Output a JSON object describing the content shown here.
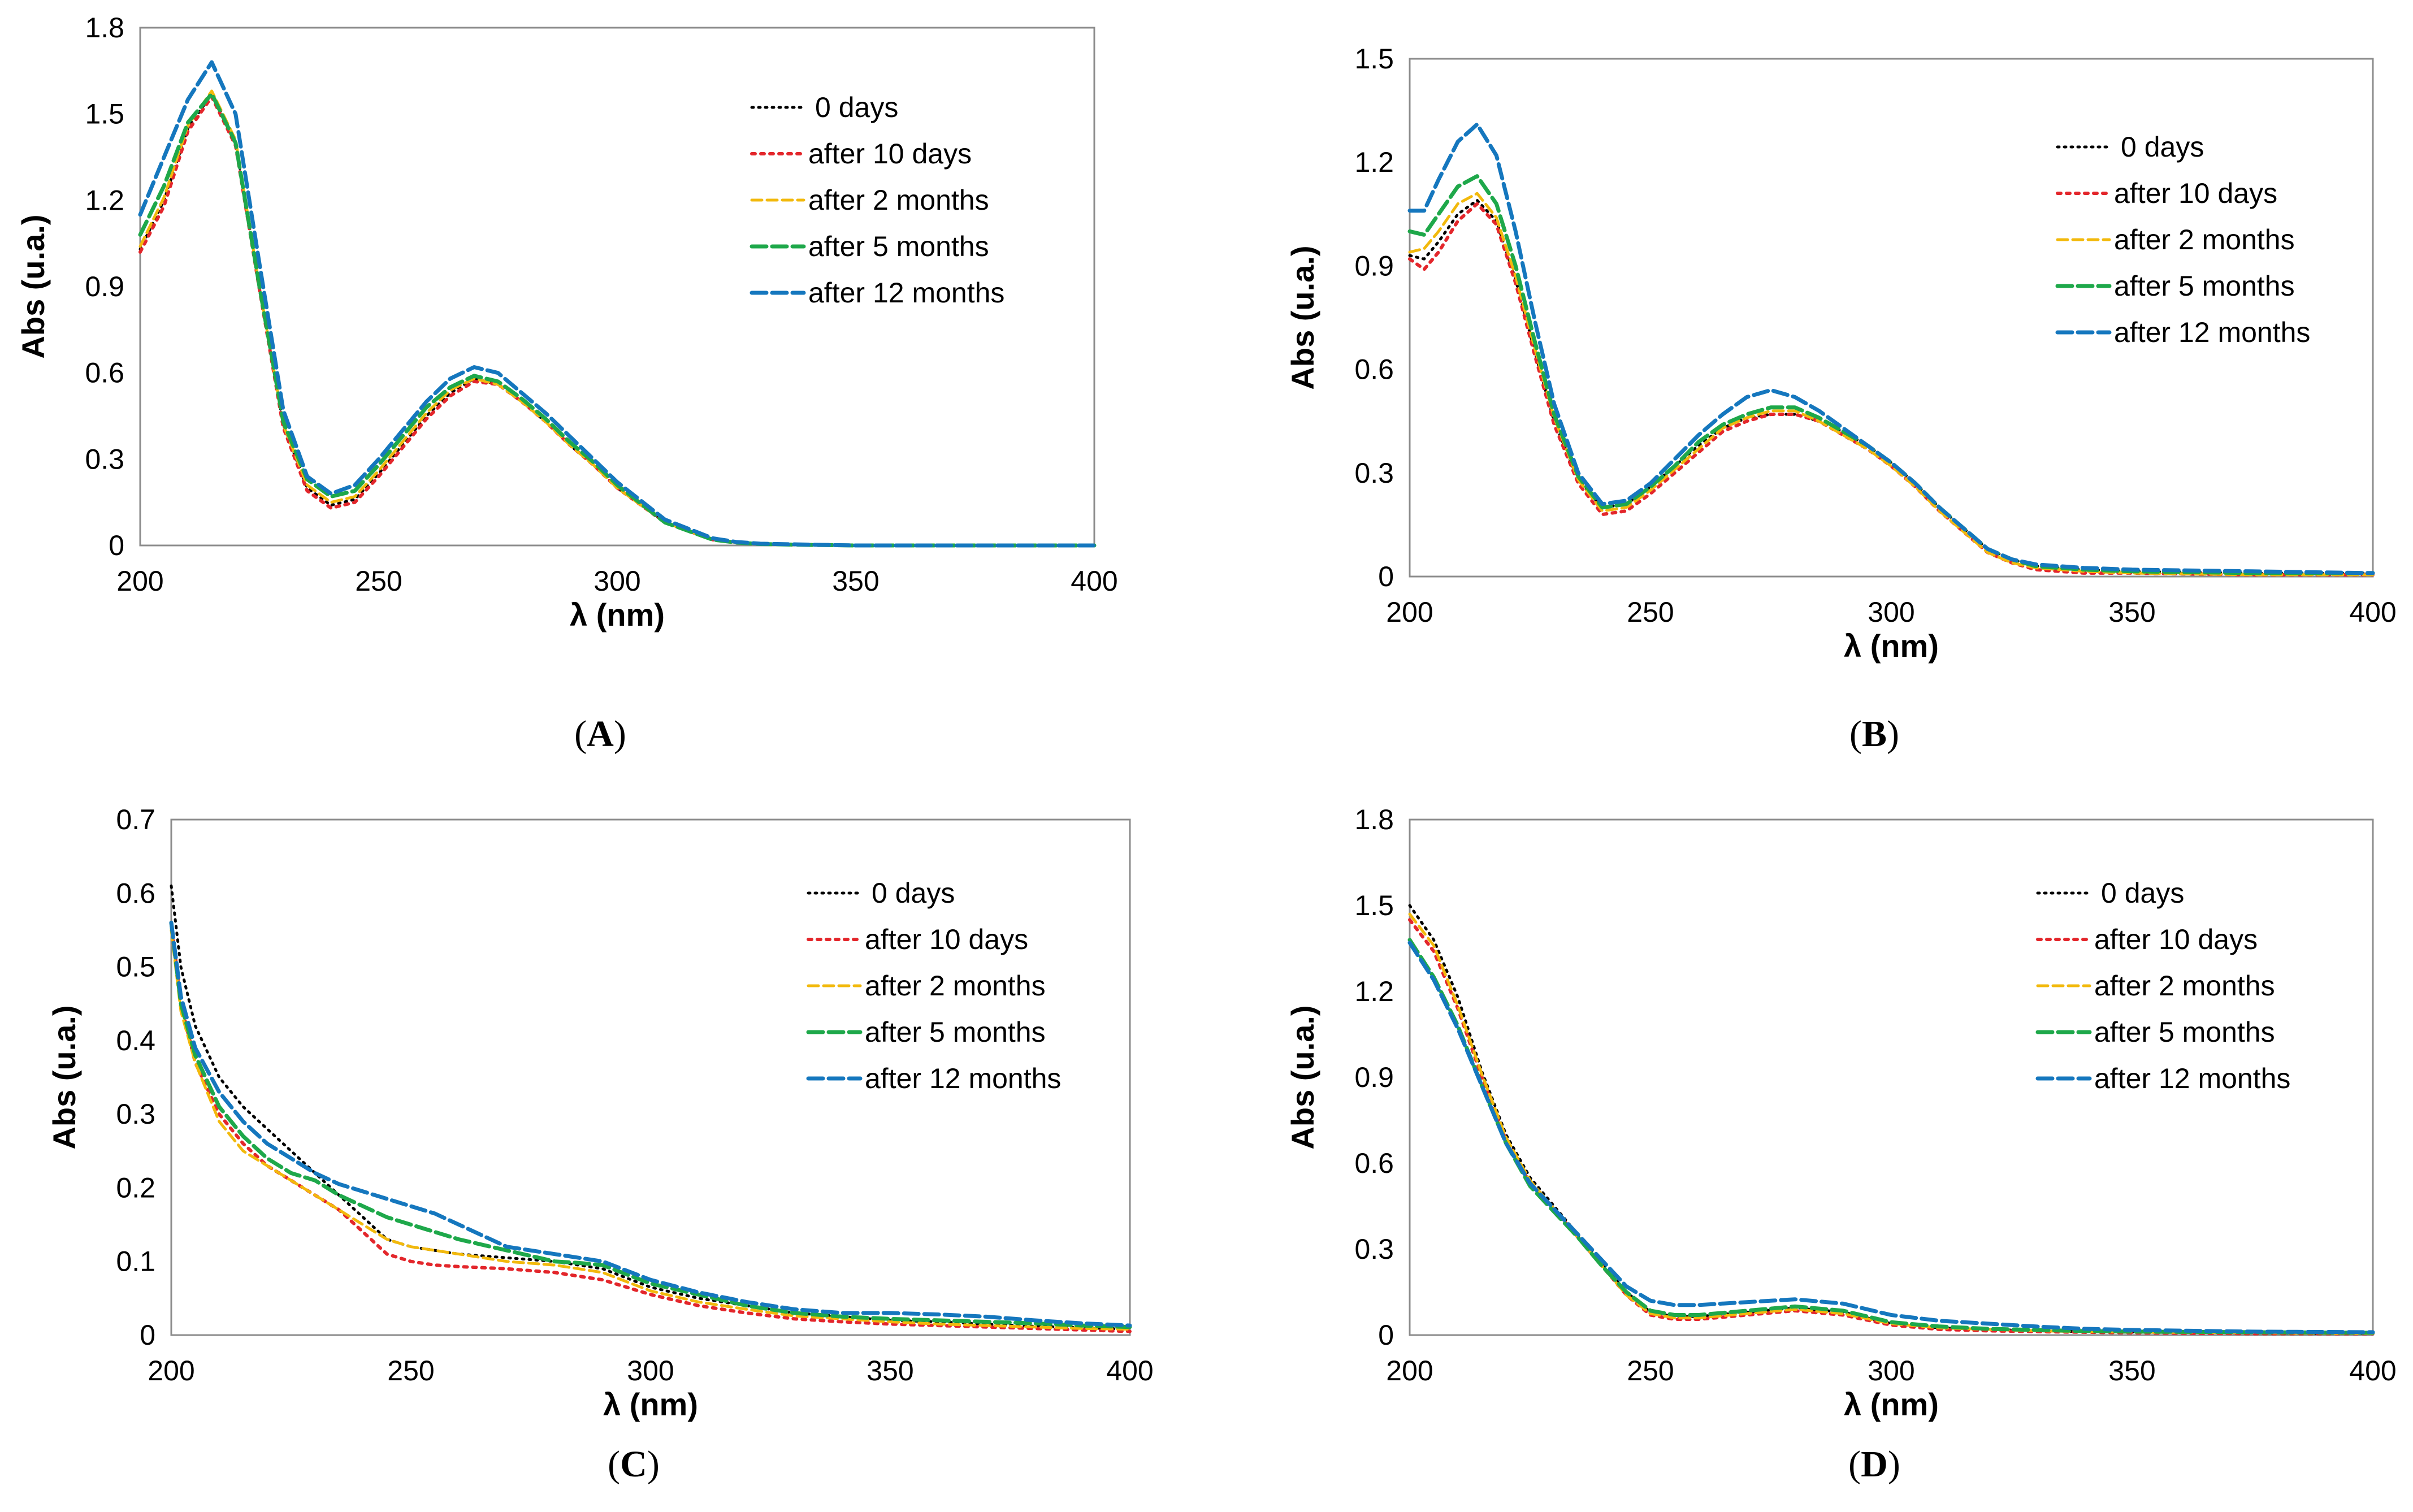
{
  "legend": [
    "0 days",
    "after 10 days",
    "after 2 months",
    "after 5 months",
    "after 12 months"
  ],
  "series_colors": [
    "#000000",
    "#e3262b",
    "#f2b90c",
    "#1ea84a",
    "#1577be"
  ],
  "chart_data": [
    {
      "panel_label": "A",
      "type": "line",
      "xlabel": "λ (nm)",
      "ylabel": "Abs (u.a.)",
      "xlim": [
        200,
        400
      ],
      "ylim": [
        0,
        1.8
      ],
      "xticks": [
        200,
        250,
        300,
        350,
        400
      ],
      "yticks": [
        0,
        0.3,
        0.6,
        0.9,
        1.2,
        1.5,
        1.8
      ],
      "ytick_labels": [
        "0",
        "0.3",
        "0.6",
        "0.9",
        "1.2",
        "1.5",
        "1.8"
      ],
      "legend_position": "top-right",
      "grid": false,
      "x": [
        200,
        205,
        210,
        215,
        220,
        225,
        230,
        235,
        240,
        245,
        250,
        255,
        260,
        265,
        270,
        275,
        280,
        285,
        290,
        295,
        300,
        310,
        320,
        325,
        330,
        340,
        350,
        375,
        400
      ],
      "series": [
        {
          "name": "0 days",
          "values": [
            1.03,
            1.2,
            1.45,
            1.57,
            1.4,
            0.9,
            0.42,
            0.2,
            0.14,
            0.16,
            0.25,
            0.35,
            0.45,
            0.53,
            0.58,
            0.56,
            0.5,
            0.43,
            0.35,
            0.28,
            0.2,
            0.08,
            0.02,
            0.01,
            0.005,
            0.002,
            0.0,
            0.0,
            0.0
          ]
        },
        {
          "name": "after 10 days",
          "values": [
            1.02,
            1.18,
            1.44,
            1.56,
            1.39,
            0.89,
            0.41,
            0.19,
            0.13,
            0.15,
            0.24,
            0.34,
            0.44,
            0.52,
            0.57,
            0.56,
            0.5,
            0.43,
            0.35,
            0.28,
            0.2,
            0.08,
            0.02,
            0.01,
            0.005,
            0.002,
            0.0,
            0.0,
            0.0
          ]
        },
        {
          "name": "after 2 months",
          "values": [
            1.04,
            1.21,
            1.46,
            1.58,
            1.41,
            0.9,
            0.42,
            0.21,
            0.15,
            0.17,
            0.26,
            0.36,
            0.46,
            0.54,
            0.58,
            0.56,
            0.5,
            0.43,
            0.35,
            0.28,
            0.2,
            0.08,
            0.02,
            0.01,
            0.005,
            0.002,
            0.0,
            0.0,
            0.0
          ]
        },
        {
          "name": "after 5 months",
          "values": [
            1.08,
            1.25,
            1.47,
            1.57,
            1.4,
            0.9,
            0.43,
            0.23,
            0.17,
            0.19,
            0.28,
            0.38,
            0.48,
            0.55,
            0.59,
            0.57,
            0.51,
            0.44,
            0.36,
            0.29,
            0.21,
            0.08,
            0.02,
            0.01,
            0.005,
            0.002,
            0.0,
            0.0,
            0.0
          ]
        },
        {
          "name": "after 12 months",
          "values": [
            1.15,
            1.35,
            1.55,
            1.68,
            1.5,
            0.98,
            0.47,
            0.24,
            0.18,
            0.21,
            0.3,
            0.4,
            0.5,
            0.58,
            0.62,
            0.6,
            0.53,
            0.46,
            0.38,
            0.3,
            0.22,
            0.09,
            0.025,
            0.012,
            0.006,
            0.003,
            0.0,
            0.0,
            0.0
          ]
        }
      ]
    },
    {
      "panel_label": "B",
      "type": "line",
      "xlabel": "λ (nm)",
      "ylabel": "Abs (u.a.)",
      "xlim": [
        200,
        400
      ],
      "ylim": [
        0,
        1.5
      ],
      "xticks": [
        200,
        250,
        300,
        350,
        400
      ],
      "yticks": [
        0,
        0.3,
        0.6,
        0.9,
        1.2,
        1.5
      ],
      "ytick_labels": [
        "0",
        "0.3",
        "0.6",
        "0.9",
        "1.2",
        "1.5"
      ],
      "legend_position": "top-right",
      "grid": false,
      "x": [
        200,
        203,
        206,
        210,
        214,
        218,
        222,
        226,
        230,
        235,
        240,
        245,
        250,
        255,
        260,
        265,
        270,
        275,
        280,
        285,
        290,
        295,
        300,
        305,
        310,
        315,
        320,
        325,
        330,
        340,
        350,
        375,
        400
      ],
      "series": [
        {
          "name": "0 days",
          "values": [
            0.93,
            0.92,
            0.97,
            1.05,
            1.09,
            1.03,
            0.86,
            0.65,
            0.45,
            0.28,
            0.2,
            0.21,
            0.26,
            0.32,
            0.38,
            0.43,
            0.46,
            0.47,
            0.47,
            0.45,
            0.42,
            0.38,
            0.33,
            0.27,
            0.2,
            0.14,
            0.08,
            0.05,
            0.03,
            0.02,
            0.015,
            0.01,
            0.01
          ]
        },
        {
          "name": "after 10 days",
          "values": [
            0.92,
            0.89,
            0.94,
            1.03,
            1.08,
            1.02,
            0.85,
            0.64,
            0.44,
            0.27,
            0.18,
            0.19,
            0.24,
            0.3,
            0.36,
            0.42,
            0.45,
            0.47,
            0.47,
            0.45,
            0.41,
            0.37,
            0.32,
            0.26,
            0.19,
            0.13,
            0.07,
            0.04,
            0.02,
            0.01,
            0.01,
            0.005,
            0.005
          ]
        },
        {
          "name": "after 2 months",
          "values": [
            0.94,
            0.95,
            1.0,
            1.08,
            1.11,
            1.04,
            0.87,
            0.66,
            0.46,
            0.28,
            0.19,
            0.2,
            0.25,
            0.31,
            0.37,
            0.43,
            0.46,
            0.48,
            0.48,
            0.45,
            0.41,
            0.37,
            0.32,
            0.26,
            0.19,
            0.13,
            0.07,
            0.04,
            0.025,
            0.015,
            0.01,
            0.005,
            0.005
          ]
        },
        {
          "name": "after 5 months",
          "values": [
            1.0,
            0.99,
            1.05,
            1.13,
            1.16,
            1.08,
            0.9,
            0.68,
            0.47,
            0.29,
            0.2,
            0.21,
            0.26,
            0.32,
            0.39,
            0.44,
            0.47,
            0.49,
            0.49,
            0.46,
            0.42,
            0.38,
            0.33,
            0.27,
            0.2,
            0.14,
            0.08,
            0.05,
            0.03,
            0.02,
            0.015,
            0.01,
            0.01
          ]
        },
        {
          "name": "after 12 months",
          "values": [
            1.06,
            1.06,
            1.15,
            1.26,
            1.31,
            1.22,
            1.0,
            0.74,
            0.5,
            0.3,
            0.21,
            0.22,
            0.27,
            0.34,
            0.41,
            0.47,
            0.52,
            0.54,
            0.52,
            0.48,
            0.43,
            0.38,
            0.33,
            0.27,
            0.2,
            0.14,
            0.08,
            0.05,
            0.035,
            0.025,
            0.02,
            0.015,
            0.01
          ]
        }
      ]
    },
    {
      "panel_label": "C",
      "type": "line",
      "xlabel": "λ (nm)",
      "ylabel": "Abs (u.a.)",
      "xlim": [
        200,
        400
      ],
      "ylim": [
        0,
        0.7
      ],
      "xticks": [
        200,
        250,
        300,
        350,
        400
      ],
      "yticks": [
        0,
        0.1,
        0.2,
        0.3,
        0.4,
        0.5,
        0.6,
        0.7
      ],
      "ytick_labels": [
        "0",
        "0.1",
        "0.2",
        "0.3",
        "0.4",
        "0.5",
        "0.6",
        "0.7"
      ],
      "legend_position": "top-right",
      "grid": false,
      "x": [
        200,
        202,
        205,
        210,
        215,
        220,
        225,
        230,
        235,
        240,
        245,
        250,
        255,
        260,
        270,
        280,
        285,
        290,
        300,
        310,
        320,
        330,
        340,
        350,
        360,
        370,
        380,
        390,
        400
      ],
      "series": [
        {
          "name": "0 days",
          "values": [
            0.61,
            0.5,
            0.42,
            0.35,
            0.31,
            0.28,
            0.25,
            0.22,
            0.19,
            0.16,
            0.13,
            0.12,
            0.115,
            0.11,
            0.105,
            0.1,
            0.095,
            0.09,
            0.065,
            0.05,
            0.04,
            0.03,
            0.025,
            0.02,
            0.018,
            0.015,
            0.012,
            0.01,
            0.008
          ]
        },
        {
          "name": "after 10 days",
          "values": [
            0.56,
            0.45,
            0.37,
            0.3,
            0.26,
            0.23,
            0.21,
            0.19,
            0.17,
            0.14,
            0.11,
            0.1,
            0.095,
            0.093,
            0.09,
            0.085,
            0.08,
            0.075,
            0.055,
            0.04,
            0.03,
            0.022,
            0.018,
            0.015,
            0.013,
            0.011,
            0.009,
            0.007,
            0.005
          ]
        },
        {
          "name": "after 2 months",
          "values": [
            0.55,
            0.44,
            0.37,
            0.29,
            0.25,
            0.23,
            0.21,
            0.19,
            0.17,
            0.15,
            0.13,
            0.12,
            0.115,
            0.11,
            0.1,
            0.095,
            0.09,
            0.085,
            0.06,
            0.045,
            0.035,
            0.026,
            0.022,
            0.018,
            0.015,
            0.013,
            0.011,
            0.009,
            0.008
          ]
        },
        {
          "name": "after 5 months",
          "values": [
            0.56,
            0.45,
            0.38,
            0.31,
            0.27,
            0.24,
            0.22,
            0.21,
            0.19,
            0.175,
            0.16,
            0.15,
            0.14,
            0.13,
            0.115,
            0.1,
            0.098,
            0.095,
            0.07,
            0.055,
            0.04,
            0.03,
            0.025,
            0.022,
            0.02,
            0.018,
            0.016,
            0.013,
            0.011
          ]
        },
        {
          "name": "after 12 months",
          "values": [
            0.56,
            0.46,
            0.39,
            0.33,
            0.29,
            0.26,
            0.24,
            0.22,
            0.205,
            0.195,
            0.185,
            0.175,
            0.165,
            0.15,
            0.12,
            0.11,
            0.105,
            0.1,
            0.075,
            0.058,
            0.045,
            0.035,
            0.03,
            0.03,
            0.028,
            0.025,
            0.02,
            0.016,
            0.013
          ]
        }
      ]
    },
    {
      "panel_label": "D",
      "type": "line",
      "xlabel": "λ (nm)",
      "ylabel": "Abs (u.a.)",
      "xlim": [
        200,
        400
      ],
      "ylim": [
        0,
        1.8
      ],
      "xticks": [
        200,
        250,
        300,
        350,
        400
      ],
      "yticks": [
        0,
        0.3,
        0.6,
        0.9,
        1.2,
        1.5,
        1.8
      ],
      "ytick_labels": [
        "0",
        "0.3",
        "0.6",
        "0.9",
        "1.2",
        "1.5",
        "1.8"
      ],
      "legend_position": "top-right",
      "grid": false,
      "x": [
        200,
        205,
        210,
        215,
        220,
        225,
        230,
        235,
        240,
        245,
        250,
        255,
        260,
        270,
        280,
        290,
        300,
        310,
        320,
        330,
        340,
        350,
        375,
        400
      ],
      "series": [
        {
          "name": "0 days",
          "values": [
            1.5,
            1.38,
            1.18,
            0.92,
            0.7,
            0.55,
            0.45,
            0.35,
            0.25,
            0.15,
            0.08,
            0.065,
            0.065,
            0.08,
            0.095,
            0.08,
            0.04,
            0.025,
            0.02,
            0.015,
            0.012,
            0.01,
            0.008,
            0.005
          ]
        },
        {
          "name": "after 10 days",
          "values": [
            1.45,
            1.34,
            1.14,
            0.9,
            0.68,
            0.53,
            0.44,
            0.34,
            0.24,
            0.14,
            0.07,
            0.055,
            0.055,
            0.07,
            0.085,
            0.07,
            0.035,
            0.02,
            0.015,
            0.012,
            0.01,
            0.008,
            0.005,
            0.005
          ]
        },
        {
          "name": "after 2 months",
          "values": [
            1.47,
            1.36,
            1.15,
            0.91,
            0.69,
            0.54,
            0.44,
            0.34,
            0.24,
            0.14,
            0.075,
            0.06,
            0.06,
            0.075,
            0.09,
            0.075,
            0.04,
            0.025,
            0.02,
            0.015,
            0.012,
            0.01,
            0.008,
            0.005
          ]
        },
        {
          "name": "after 5 months",
          "values": [
            1.38,
            1.25,
            1.08,
            0.87,
            0.67,
            0.52,
            0.43,
            0.34,
            0.24,
            0.15,
            0.085,
            0.07,
            0.07,
            0.085,
            0.1,
            0.085,
            0.045,
            0.03,
            0.022,
            0.018,
            0.014,
            0.012,
            0.01,
            0.008
          ]
        },
        {
          "name": "after 12 months",
          "values": [
            1.37,
            1.24,
            1.07,
            0.87,
            0.67,
            0.53,
            0.44,
            0.35,
            0.26,
            0.17,
            0.12,
            0.105,
            0.105,
            0.115,
            0.125,
            0.11,
            0.07,
            0.05,
            0.04,
            0.03,
            0.022,
            0.018,
            0.012,
            0.01
          ]
        }
      ]
    }
  ]
}
